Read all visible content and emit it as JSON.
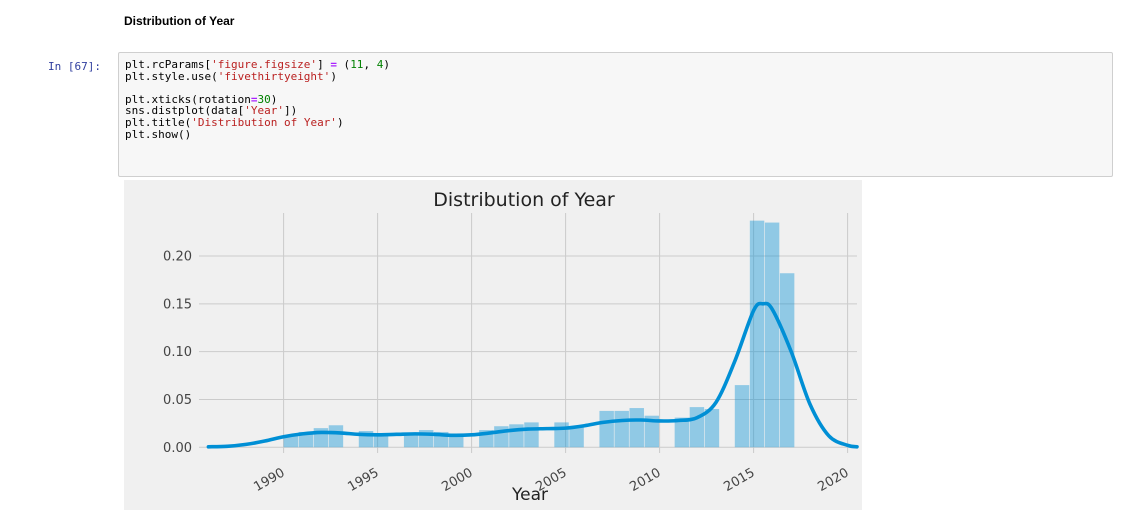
{
  "notebook": {
    "heading": "Distribution of Year",
    "cell_prompt": "In [67]:",
    "code": {
      "line1": [
        "plt.rcParams[",
        "'figure.figsize'",
        "] ",
        "=",
        " (",
        "11",
        ", ",
        "4",
        ")"
      ],
      "line2": [
        "plt.style.use(",
        "'fivethirtyeight'",
        ")"
      ],
      "line3": [
        "plt.xticks(rotation",
        "=",
        "30",
        ")"
      ],
      "line4": [
        "sns.distplot(data[",
        "'Year'",
        "])"
      ],
      "line5": [
        "plt.title(",
        "'Distribution of Year'",
        ")"
      ],
      "line6": [
        "plt.show()"
      ]
    }
  },
  "colors": {
    "plot_bg": "#f0f0f0",
    "grid": "#cbcbcb",
    "hist_fill": "#008fd5",
    "kde_line": "#008fd5"
  },
  "chart_data": {
    "type": "histogram",
    "title": "Distribution of Year",
    "xlabel": "Year",
    "ylabel": "",
    "xlim": [
      1985.5,
      2020.5
    ],
    "ylim": [
      -0.006,
      0.245
    ],
    "grid": true,
    "xticks": [
      1990,
      1995,
      2000,
      2005,
      2010,
      2015,
      2020
    ],
    "xtick_rotation": 30,
    "yticks": [
      0.0,
      0.05,
      0.1,
      0.15,
      0.2
    ],
    "ytick_labels": [
      "0.00",
      "0.05",
      "0.10",
      "0.15",
      "0.20"
    ],
    "bins": [
      {
        "x0": 1990.0,
        "x1": 1990.8,
        "density": 0.013
      },
      {
        "x0": 1990.8,
        "x1": 1991.6,
        "density": 0.016
      },
      {
        "x0": 1991.6,
        "x1": 1992.4,
        "density": 0.02
      },
      {
        "x0": 1992.4,
        "x1": 1993.2,
        "density": 0.023
      },
      {
        "x0": 1993.2,
        "x1": 1994.0,
        "density": 0.0
      },
      {
        "x0": 1994.0,
        "x1": 1994.8,
        "density": 0.017
      },
      {
        "x0": 1994.8,
        "x1": 1995.6,
        "density": 0.013
      },
      {
        "x0": 1995.6,
        "x1": 1996.4,
        "density": 0.0
      },
      {
        "x0": 1996.4,
        "x1": 1997.2,
        "density": 0.014
      },
      {
        "x0": 1997.2,
        "x1": 1998.0,
        "density": 0.018
      },
      {
        "x0": 1998.0,
        "x1": 1998.8,
        "density": 0.016
      },
      {
        "x0": 1998.8,
        "x1": 1999.6,
        "density": 0.014
      },
      {
        "x0": 1999.6,
        "x1": 2000.4,
        "density": 0.0
      },
      {
        "x0": 2000.4,
        "x1": 2001.2,
        "density": 0.018
      },
      {
        "x0": 2001.2,
        "x1": 2002.0,
        "density": 0.022
      },
      {
        "x0": 2002.0,
        "x1": 2002.8,
        "density": 0.024
      },
      {
        "x0": 2002.8,
        "x1": 2003.6,
        "density": 0.026
      },
      {
        "x0": 2003.6,
        "x1": 2004.4,
        "density": 0.0
      },
      {
        "x0": 2004.4,
        "x1": 2005.2,
        "density": 0.026
      },
      {
        "x0": 2005.2,
        "x1": 2006.0,
        "density": 0.022
      },
      {
        "x0": 2006.0,
        "x1": 2006.8,
        "density": 0.0
      },
      {
        "x0": 2006.8,
        "x1": 2007.6,
        "density": 0.038
      },
      {
        "x0": 2007.6,
        "x1": 2008.4,
        "density": 0.038
      },
      {
        "x0": 2008.4,
        "x1": 2009.2,
        "density": 0.041
      },
      {
        "x0": 2009.2,
        "x1": 2010.0,
        "density": 0.033
      },
      {
        "x0": 2010.0,
        "x1": 2010.8,
        "density": 0.0
      },
      {
        "x0": 2010.8,
        "x1": 2011.6,
        "density": 0.031
      },
      {
        "x0": 2011.6,
        "x1": 2012.4,
        "density": 0.042
      },
      {
        "x0": 2012.4,
        "x1": 2013.2,
        "density": 0.04
      },
      {
        "x0": 2013.2,
        "x1": 2014.0,
        "density": 0.0
      },
      {
        "x0": 2014.0,
        "x1": 2014.8,
        "density": 0.065
      },
      {
        "x0": 2014.8,
        "x1": 2015.6,
        "density": 0.237
      },
      {
        "x0": 2015.6,
        "x1": 2016.4,
        "density": 0.235
      },
      {
        "x0": 2016.4,
        "x1": 2017.2,
        "density": 0.182
      }
    ],
    "kde": [
      [
        1986.0,
        0.0005
      ],
      [
        1987.0,
        0.001
      ],
      [
        1988.0,
        0.003
      ],
      [
        1989.0,
        0.0065
      ],
      [
        1990.0,
        0.011
      ],
      [
        1991.0,
        0.014
      ],
      [
        1992.0,
        0.0155
      ],
      [
        1993.0,
        0.015
      ],
      [
        1994.0,
        0.0135
      ],
      [
        1995.0,
        0.013
      ],
      [
        1996.0,
        0.0135
      ],
      [
        1997.0,
        0.014
      ],
      [
        1998.0,
        0.0135
      ],
      [
        1999.0,
        0.0125
      ],
      [
        2000.0,
        0.013
      ],
      [
        2001.0,
        0.015
      ],
      [
        2002.0,
        0.0175
      ],
      [
        2003.0,
        0.019
      ],
      [
        2004.0,
        0.0195
      ],
      [
        2005.0,
        0.02
      ],
      [
        2006.0,
        0.0225
      ],
      [
        2007.0,
        0.026
      ],
      [
        2008.0,
        0.028
      ],
      [
        2009.0,
        0.0285
      ],
      [
        2010.0,
        0.0275
      ],
      [
        2011.0,
        0.028
      ],
      [
        2012.0,
        0.031
      ],
      [
        2013.0,
        0.047
      ],
      [
        2014.0,
        0.09
      ],
      [
        2015.0,
        0.143
      ],
      [
        2015.5,
        0.15
      ],
      [
        2016.0,
        0.144
      ],
      [
        2017.0,
        0.1
      ],
      [
        2018.0,
        0.045
      ],
      [
        2019.0,
        0.012
      ],
      [
        2020.0,
        0.002
      ],
      [
        2020.5,
        0.0005
      ]
    ]
  }
}
